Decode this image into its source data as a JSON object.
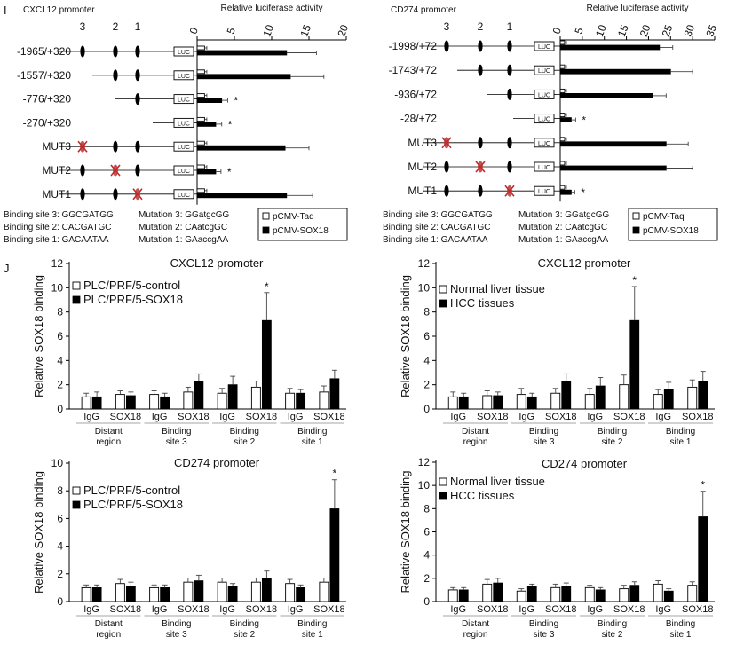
{
  "panel_labels": {
    "i": "I",
    "j": "J"
  },
  "chart_data": [
    {
      "id": "luc-cxcl12",
      "type": "bar",
      "orientation": "horizontal",
      "title": "Relative luciferase activity",
      "promoter_title": "CXCL12 promoter",
      "site_numbers": [
        "3",
        "2",
        "1"
      ],
      "luc_label": "LUC",
      "xlim": [
        0,
        20
      ],
      "xticks": [
        0,
        5,
        10,
        15,
        20
      ],
      "categories": [
        "-1965/+320",
        "-1557/+320",
        "-776/+320",
        "-270/+320",
        "MUT3",
        "MUT2",
        "MUT1"
      ],
      "constructs": [
        {
          "sites": [
            3,
            2,
            1
          ],
          "mut": null
        },
        {
          "sites": [
            2,
            1
          ],
          "mut": null
        },
        {
          "sites": [
            1
          ],
          "mut": null
        },
        {
          "sites": [],
          "mut": null
        },
        {
          "sites": [
            2,
            1
          ],
          "mut": 3
        },
        {
          "sites": [
            3,
            1
          ],
          "mut": 2
        },
        {
          "sites": [
            3,
            2
          ],
          "mut": 1
        }
      ],
      "series": [
        {
          "name": "pCMV-Taq",
          "values": [
            1,
            1,
            1,
            1,
            1,
            1,
            1
          ],
          "errors": [
            0.3,
            0.3,
            0.3,
            0.3,
            0.3,
            0.3,
            0.3
          ]
        },
        {
          "name": "pCMV-SOX18",
          "values": [
            12,
            12.5,
            3.3,
            2.5,
            11.8,
            2.5,
            12
          ],
          "errors": [
            4,
            4.5,
            0.8,
            0.8,
            3.2,
            0.7,
            3.5
          ]
        }
      ],
      "significance": [
        "",
        "",
        "*",
        "*",
        "",
        "*",
        ""
      ],
      "binding_sites": [
        "Binding site 3: GGCGATGG",
        "Binding site 2: CACGATGC",
        "Binding site 1: GACAATAA"
      ],
      "mutations": [
        "Mutation 3: GGatgcGG",
        "Mutation 2: CAatcgGC",
        "Mutation 1: GAaccgAA"
      ]
    },
    {
      "id": "luc-cd274",
      "type": "bar",
      "orientation": "horizontal",
      "title": "Relative luciferase activity",
      "promoter_title": "CD274 promoter",
      "site_numbers": [
        "3",
        "2",
        "1"
      ],
      "luc_label": "LUC",
      "xlim": [
        0,
        35
      ],
      "xticks": [
        0,
        5,
        10,
        15,
        20,
        25,
        30,
        35
      ],
      "categories": [
        "-1998/+72",
        "-1743/+72",
        "-936/+72",
        "-28/+72",
        "MUT3",
        "MUT2",
        "MUT1"
      ],
      "constructs": [
        {
          "sites": [
            3,
            2,
            1
          ],
          "mut": null
        },
        {
          "sites": [
            2,
            1
          ],
          "mut": null
        },
        {
          "sites": [
            1
          ],
          "mut": null
        },
        {
          "sites": [],
          "mut": null
        },
        {
          "sites": [
            2,
            1
          ],
          "mut": 3
        },
        {
          "sites": [
            3,
            1
          ],
          "mut": 2
        },
        {
          "sites": [
            3,
            2
          ],
          "mut": 1
        }
      ],
      "series": [
        {
          "name": "pCMV-Taq",
          "values": [
            1,
            1,
            1,
            1,
            1,
            1,
            1
          ],
          "errors": [
            0.4,
            0.4,
            0.4,
            0.4,
            0.4,
            0.4,
            0.4
          ]
        },
        {
          "name": "pCMV-SOX18",
          "values": [
            22.5,
            25,
            21,
            2.5,
            24,
            24,
            2.5
          ],
          "errors": [
            3,
            5,
            3,
            1,
            5,
            6,
            0.8
          ]
        }
      ],
      "significance": [
        "",
        "",
        "",
        "*",
        "",
        "",
        "*"
      ],
      "binding_sites": [
        "Binding site 3: GGCGATGG",
        "Binding site 2: CACGATGC",
        "Binding site 1: GACAATAA"
      ],
      "mutations": [
        "Mutation 3: GGatgcGG",
        "Mutation 2: CAatcgGC",
        "Mutation 1: GAaccgAA"
      ]
    },
    {
      "id": "chip-cxcl12-cell",
      "type": "bar",
      "title": "CXCL12 promoter",
      "ylabel": "Relative SOX18 binding",
      "ylim": [
        0,
        12
      ],
      "yticks": [
        0,
        2,
        4,
        6,
        8,
        10,
        12
      ],
      "categories": [
        "IgG",
        "SOX18",
        "IgG",
        "SOX18",
        "IgG",
        "SOX18",
        "IgG",
        "SOX18"
      ],
      "groups": [
        [
          "Distant",
          "region"
        ],
        [
          "Binding",
          "site 3"
        ],
        [
          "Binding",
          "site 2"
        ],
        [
          "Binding",
          "site 1"
        ]
      ],
      "legend_position": "top-left",
      "series": [
        {
          "name": "PLC/PRF/5-control",
          "values": [
            1.0,
            1.2,
            1.2,
            1.4,
            1.3,
            1.8,
            1.3,
            1.4
          ],
          "errors": [
            0.3,
            0.3,
            0.3,
            0.4,
            0.4,
            0.5,
            0.4,
            0.5
          ]
        },
        {
          "name": "PLC/PRF/5-SOX18",
          "values": [
            1.0,
            1.1,
            1.0,
            2.3,
            2.0,
            7.3,
            1.3,
            2.5
          ],
          "errors": [
            0.4,
            0.3,
            0.3,
            0.6,
            0.7,
            2.3,
            0.3,
            0.7
          ]
        }
      ],
      "significance": [
        "",
        "",
        "",
        "",
        "",
        "*",
        "",
        ""
      ]
    },
    {
      "id": "chip-cxcl12-tissue",
      "type": "bar",
      "title": "CXCL12 promoter",
      "ylabel": "Relative SOX18 binding",
      "ylim": [
        0,
        12
      ],
      "yticks": [
        0,
        2,
        4,
        6,
        8,
        10,
        12
      ],
      "categories": [
        "IgG",
        "SOX18",
        "IgG",
        "SOX18",
        "IgG",
        "SOX18",
        "IgG",
        "SOX18"
      ],
      "groups": [
        [
          "Distant",
          "region"
        ],
        [
          "Binding",
          "site 3"
        ],
        [
          "Binding",
          "site 2"
        ],
        [
          "Binding",
          "site 1"
        ]
      ],
      "legend_position": "top-left",
      "series": [
        {
          "name": "Normal liver tissue",
          "values": [
            1.0,
            1.1,
            1.2,
            1.3,
            1.2,
            2.0,
            1.2,
            1.8
          ],
          "errors": [
            0.4,
            0.4,
            0.5,
            0.4,
            0.5,
            0.8,
            0.4,
            0.6
          ]
        },
        {
          "name": "HCC tissues",
          "values": [
            1.0,
            1.1,
            1.0,
            2.3,
            1.9,
            7.3,
            1.6,
            2.3
          ],
          "errors": [
            0.3,
            0.3,
            0.3,
            0.6,
            0.7,
            2.8,
            0.6,
            0.8
          ]
        }
      ],
      "significance": [
        "",
        "",
        "",
        "",
        "",
        "*",
        "",
        ""
      ]
    },
    {
      "id": "chip-cd274-cell",
      "type": "bar",
      "title": "CD274 promoter",
      "ylabel": "Relative SOX18 binding",
      "ylim": [
        0,
        10
      ],
      "yticks": [
        0,
        2,
        4,
        6,
        8,
        10
      ],
      "categories": [
        "IgG",
        "SOX18",
        "IgG",
        "SOX18",
        "IgG",
        "SOX18",
        "IgG",
        "SOX18"
      ],
      "groups": [
        [
          "Distant",
          "region"
        ],
        [
          "Binding",
          "site 3"
        ],
        [
          "Binding",
          "site 2"
        ],
        [
          "Binding",
          "site 1"
        ]
      ],
      "legend_position": "top-left",
      "series": [
        {
          "name": "PLC/PRF/5-control",
          "values": [
            1.0,
            1.3,
            1.0,
            1.4,
            1.4,
            1.4,
            1.3,
            1.4
          ],
          "errors": [
            0.2,
            0.3,
            0.2,
            0.3,
            0.3,
            0.3,
            0.3,
            0.3
          ]
        },
        {
          "name": "PLC/PRF/5-SOX18",
          "values": [
            1.0,
            1.1,
            1.0,
            1.5,
            1.1,
            1.7,
            1.0,
            6.7
          ],
          "errors": [
            0.2,
            0.3,
            0.2,
            0.4,
            0.2,
            0.5,
            0.2,
            2.1
          ]
        }
      ],
      "significance": [
        "",
        "",
        "",
        "",
        "",
        "",
        "",
        "*"
      ]
    },
    {
      "id": "chip-cd274-tissue",
      "type": "bar",
      "title": "CD274 promoter",
      "ylabel": "Relative SOX18 binding",
      "ylim": [
        0,
        12
      ],
      "yticks": [
        0,
        2,
        4,
        6,
        8,
        10,
        12
      ],
      "categories": [
        "IgG",
        "SOX18",
        "IgG",
        "SOX18",
        "IgG",
        "SOX18",
        "IgG",
        "SOX18"
      ],
      "groups": [
        [
          "Distant",
          "region"
        ],
        [
          "Binding",
          "site 3"
        ],
        [
          "Binding",
          "site 2"
        ],
        [
          "Binding",
          "site 1"
        ]
      ],
      "legend_position": "top-left",
      "series": [
        {
          "name": "Normal liver tissue",
          "values": [
            1.0,
            1.5,
            0.9,
            1.2,
            1.2,
            1.1,
            1.5,
            1.4
          ],
          "errors": [
            0.2,
            0.4,
            0.2,
            0.3,
            0.2,
            0.3,
            0.3,
            0.3
          ]
        },
        {
          "name": "HCC tissues",
          "values": [
            1.0,
            1.6,
            1.3,
            1.3,
            1.0,
            1.4,
            0.9,
            7.3
          ],
          "errors": [
            0.2,
            0.4,
            0.2,
            0.3,
            0.2,
            0.3,
            0.2,
            2.2
          ]
        }
      ],
      "significance": [
        "",
        "",
        "",
        "",
        "",
        "",
        "",
        "*"
      ]
    }
  ]
}
